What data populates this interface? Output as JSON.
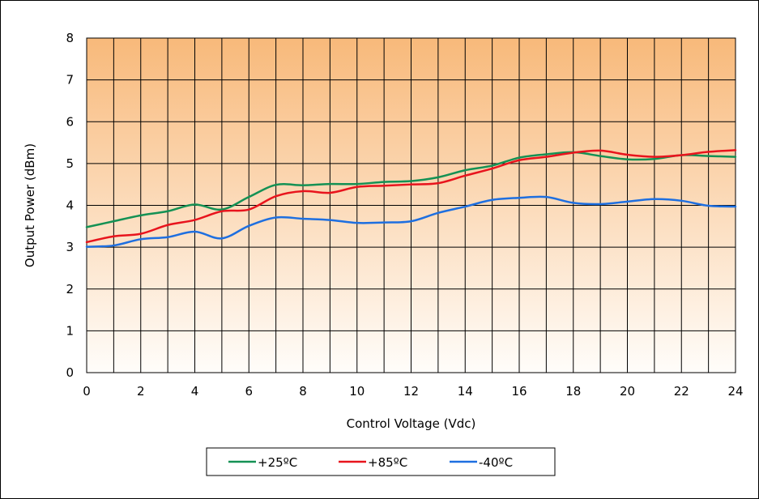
{
  "chart_data": {
    "type": "line",
    "title": "",
    "xlabel": "Control Voltage (Vdc)",
    "ylabel": "Output Power (dBm)",
    "xlim": [
      0,
      24
    ],
    "ylim": [
      0,
      8
    ],
    "x_ticks": [
      "0",
      "2",
      "4",
      "6",
      "8",
      "10",
      "12",
      "14",
      "16",
      "18",
      "20",
      "22",
      "24"
    ],
    "y_ticks": [
      "0",
      "1",
      "2",
      "3",
      "4",
      "5",
      "6",
      "7",
      "8"
    ],
    "grid": true,
    "legend_position": "bottom",
    "background": {
      "top_color": "#f8b97a",
      "bottom_color": "#fffdfa"
    },
    "x": [
      0,
      1,
      2,
      3,
      4,
      5,
      6,
      7,
      8,
      9,
      10,
      11,
      12,
      13,
      14,
      15,
      16,
      17,
      18,
      19,
      20,
      21,
      22,
      23,
      24
    ],
    "series": [
      {
        "name": "+25ºC",
        "color": "#149154",
        "values": [
          3.48,
          3.62,
          3.76,
          3.86,
          4.02,
          3.9,
          4.2,
          4.49,
          4.48,
          4.51,
          4.51,
          4.56,
          4.58,
          4.67,
          4.84,
          4.95,
          5.14,
          5.22,
          5.27,
          5.18,
          5.1,
          5.11,
          5.2,
          5.18,
          5.16
        ]
      },
      {
        "name": "+85ºC",
        "color": "#e8141d",
        "values": [
          3.12,
          3.26,
          3.32,
          3.53,
          3.65,
          3.86,
          3.9,
          4.22,
          4.34,
          4.3,
          4.44,
          4.47,
          4.5,
          4.53,
          4.71,
          4.88,
          5.08,
          5.16,
          5.26,
          5.31,
          5.21,
          5.16,
          5.2,
          5.28,
          5.32
        ]
      },
      {
        "name": "-40ºC",
        "color": "#1e6fe0",
        "values": [
          3.01,
          3.04,
          3.19,
          3.24,
          3.37,
          3.21,
          3.51,
          3.71,
          3.68,
          3.65,
          3.58,
          3.59,
          3.62,
          3.82,
          3.97,
          4.13,
          4.18,
          4.2,
          4.06,
          4.03,
          4.09,
          4.15,
          4.11,
          3.99,
          3.97
        ]
      }
    ]
  }
}
